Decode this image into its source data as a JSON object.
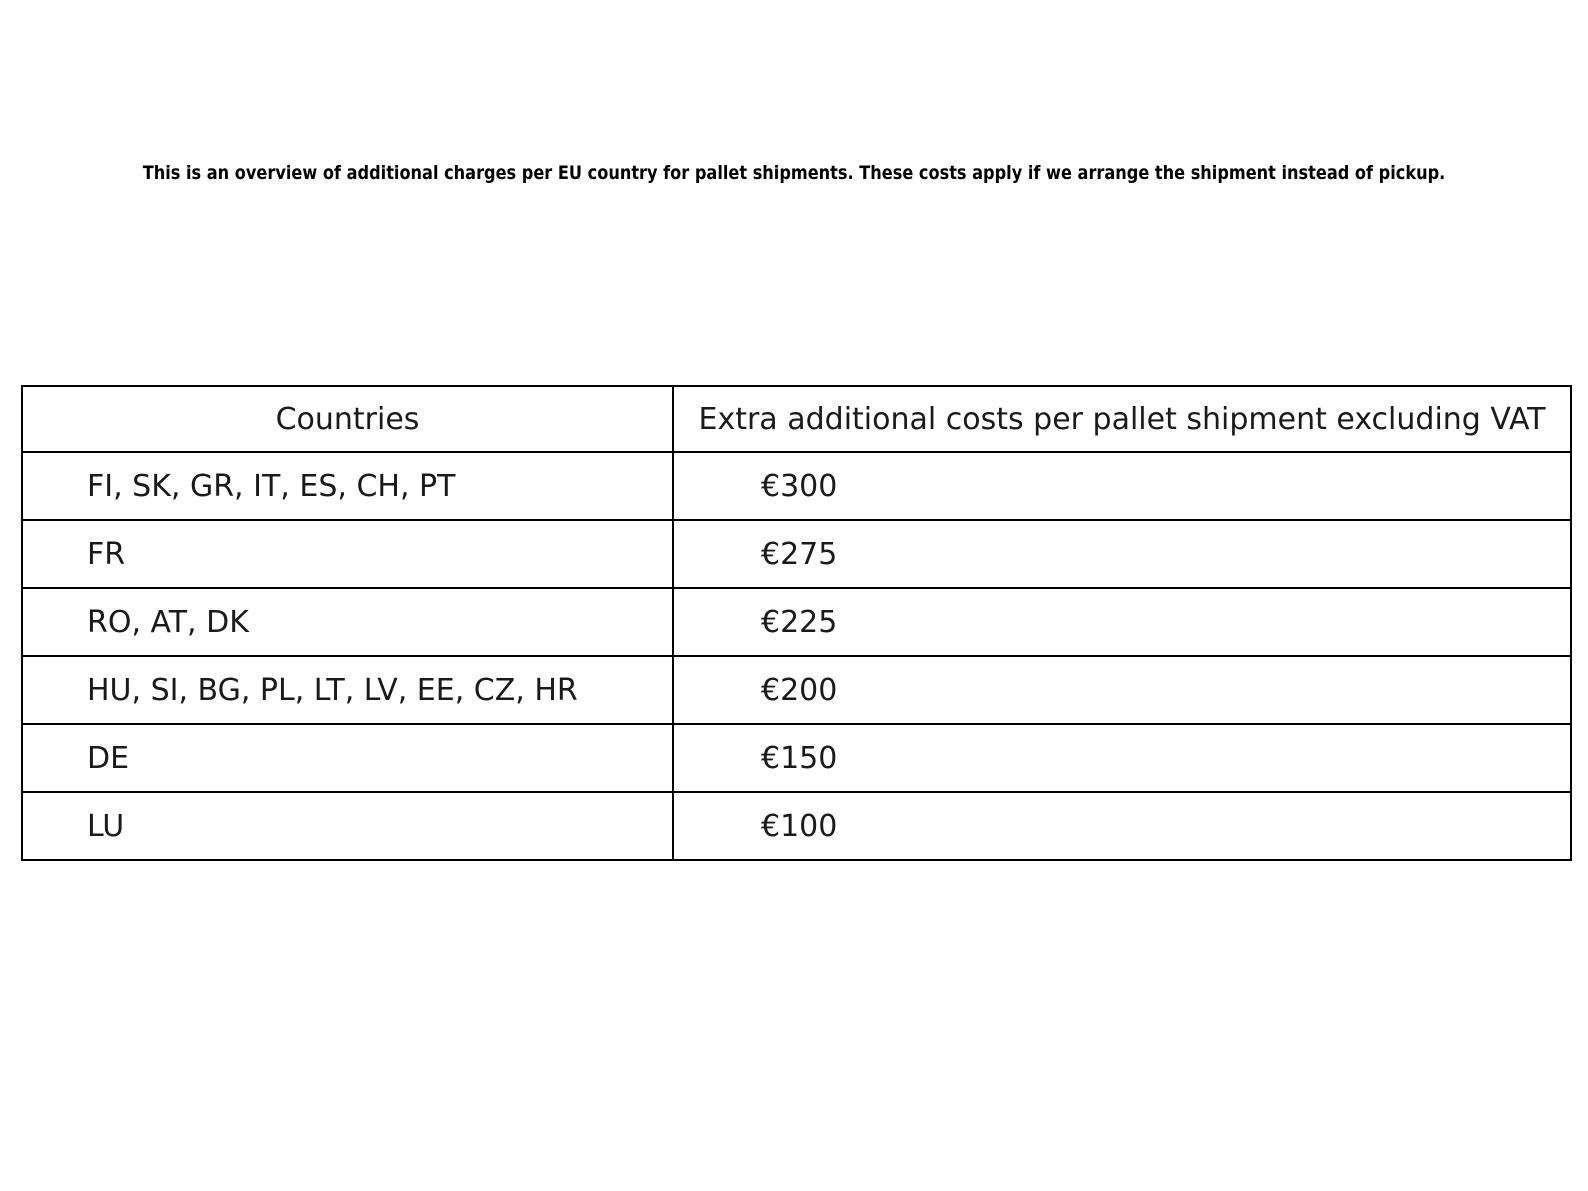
{
  "page": {
    "title": "This is an overview of additional charges per EU country for pallet shipments. These costs apply if we arrange the shipment instead of pickup."
  },
  "table": {
    "headers": {
      "countries": "Countries",
      "costs": "Extra additional costs per pallet shipment excluding VAT"
    },
    "rows": [
      {
        "countries": "FI, SK, GR, IT, ES, CH, PT",
        "cost": "€300"
      },
      {
        "countries": "FR",
        "cost": "€275"
      },
      {
        "countries": "RO, AT, DK",
        "cost": "€225"
      },
      {
        "countries": "HU, SI, BG, PL, LT, LV, EE, CZ, HR",
        "cost": "€200"
      },
      {
        "countries": "DE",
        "cost": "€150"
      },
      {
        "countries": "LU",
        "cost": "€100"
      }
    ]
  },
  "colors": {
    "border": "#000000",
    "text": "#1a1a1a",
    "caption_text": "#000000",
    "background": "#ffffff"
  }
}
